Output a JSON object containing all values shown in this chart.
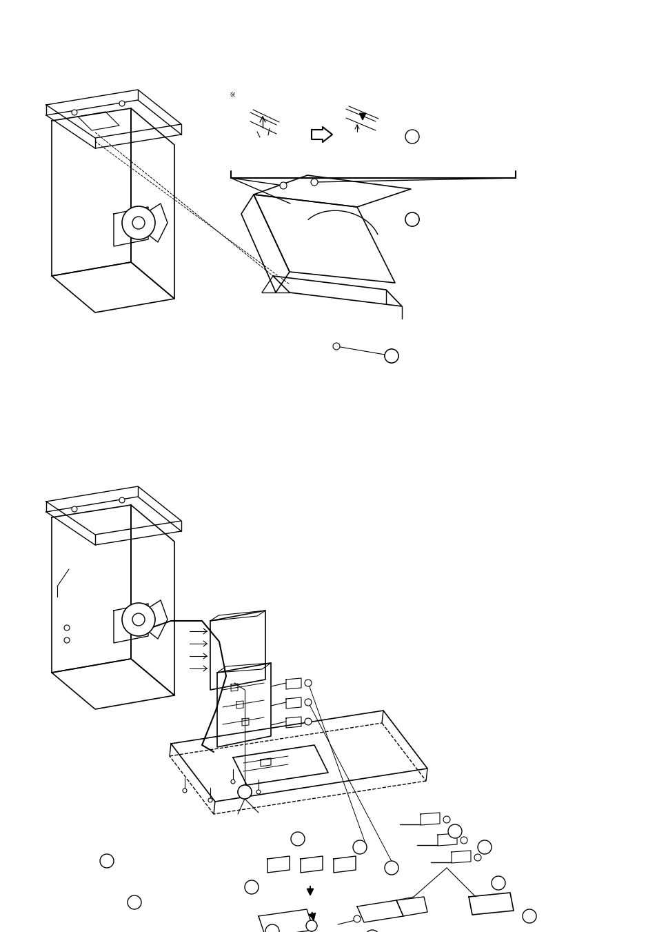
{
  "background_color": "#ffffff",
  "line_color": "#000000",
  "page_width": 9.54,
  "page_height": 13.51,
  "dpi": 100
}
